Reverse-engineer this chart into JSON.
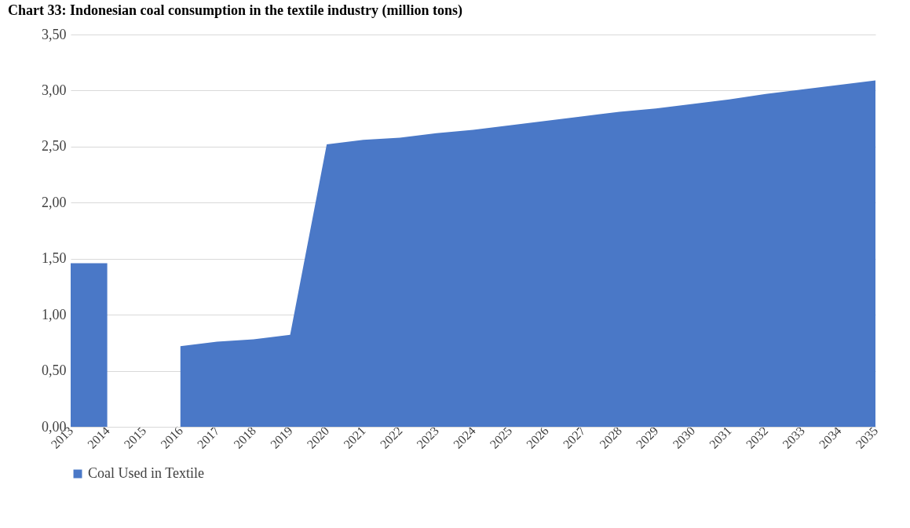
{
  "chart_data": {
    "type": "area",
    "title": "Chart 33: Indonesian coal consumption in the textile industry (million tons)",
    "categories": [
      "2013",
      "2014",
      "2015",
      "2016",
      "2017",
      "2018",
      "2019",
      "2020",
      "2021",
      "2022",
      "2023",
      "2024",
      "2025",
      "2026",
      "2027",
      "2028",
      "2029",
      "2030",
      "2031",
      "2032",
      "2033",
      "2034",
      "2035"
    ],
    "series": [
      {
        "name": "Coal Used in Textile",
        "color": "#4a78c7",
        "values": [
          1.46,
          1.46,
          null,
          0.72,
          0.76,
          0.78,
          0.82,
          2.52,
          2.56,
          2.58,
          2.62,
          2.65,
          2.69,
          2.73,
          2.77,
          2.81,
          2.84,
          2.88,
          2.92,
          2.97,
          3.01,
          3.05,
          3.09
        ]
      }
    ],
    "ylim": [
      0,
      3.5
    ],
    "yticks": [
      {
        "value": 0,
        "label": "0,00"
      },
      {
        "value": 0.5,
        "label": "0,50"
      },
      {
        "value": 1,
        "label": "1,00"
      },
      {
        "value": 1.5,
        "label": "1,50"
      },
      {
        "value": 2,
        "label": "2,00"
      },
      {
        "value": 2.5,
        "label": "2,50"
      },
      {
        "value": 3,
        "label": "3,00"
      },
      {
        "value": 3.5,
        "label": "3,50"
      }
    ],
    "grid": "y",
    "legend": "bottom"
  }
}
